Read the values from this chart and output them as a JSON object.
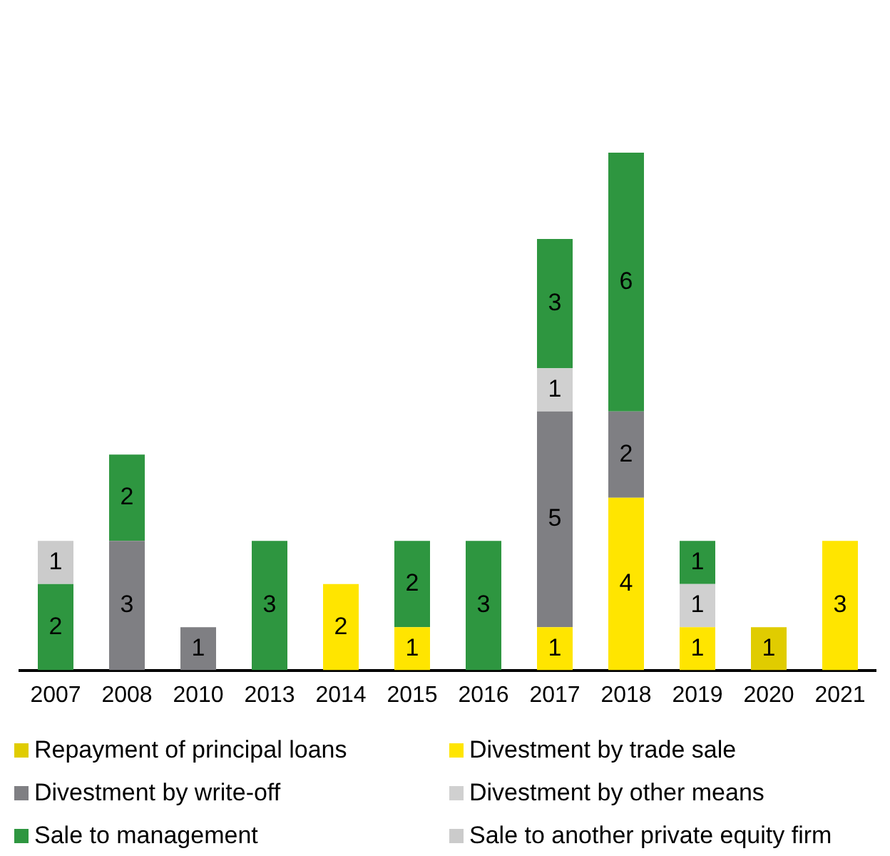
{
  "chart_data": {
    "type": "bar",
    "stacked": true,
    "data_labels": true,
    "grid": false,
    "legend": "bottom",
    "categories": [
      "2007",
      "2008",
      "2010",
      "2013",
      "2014",
      "2015",
      "2016",
      "2017",
      "2018",
      "2019",
      "2020",
      "2021"
    ],
    "series": [
      {
        "name": "Repayment of principal loans",
        "color": "#e0cc00",
        "values": [
          null,
          null,
          null,
          null,
          null,
          null,
          null,
          null,
          null,
          null,
          1,
          null
        ]
      },
      {
        "name": "Divestment by trade sale",
        "color": "#ffe500",
        "values": [
          null,
          null,
          null,
          null,
          2,
          1,
          null,
          1,
          4,
          1,
          null,
          3
        ]
      },
      {
        "name": "Divestment by write-off",
        "color": "#7f7f83",
        "values": [
          null,
          3,
          1,
          null,
          null,
          null,
          null,
          5,
          2,
          null,
          null,
          null
        ]
      },
      {
        "name": "Divestment by other means",
        "color": "#d0d0d0",
        "values": [
          null,
          null,
          null,
          null,
          null,
          null,
          null,
          1,
          null,
          1,
          null,
          null
        ]
      },
      {
        "name": "Sale to management",
        "color": "#2e9640",
        "values": [
          2,
          2,
          null,
          3,
          null,
          2,
          3,
          3,
          6,
          1,
          null,
          null
        ]
      },
      {
        "name": "Sale to another private equity firm",
        "color": "#cbcbcb",
        "values": [
          1,
          null,
          null,
          null,
          null,
          null,
          null,
          null,
          null,
          null,
          null,
          null
        ]
      }
    ]
  }
}
